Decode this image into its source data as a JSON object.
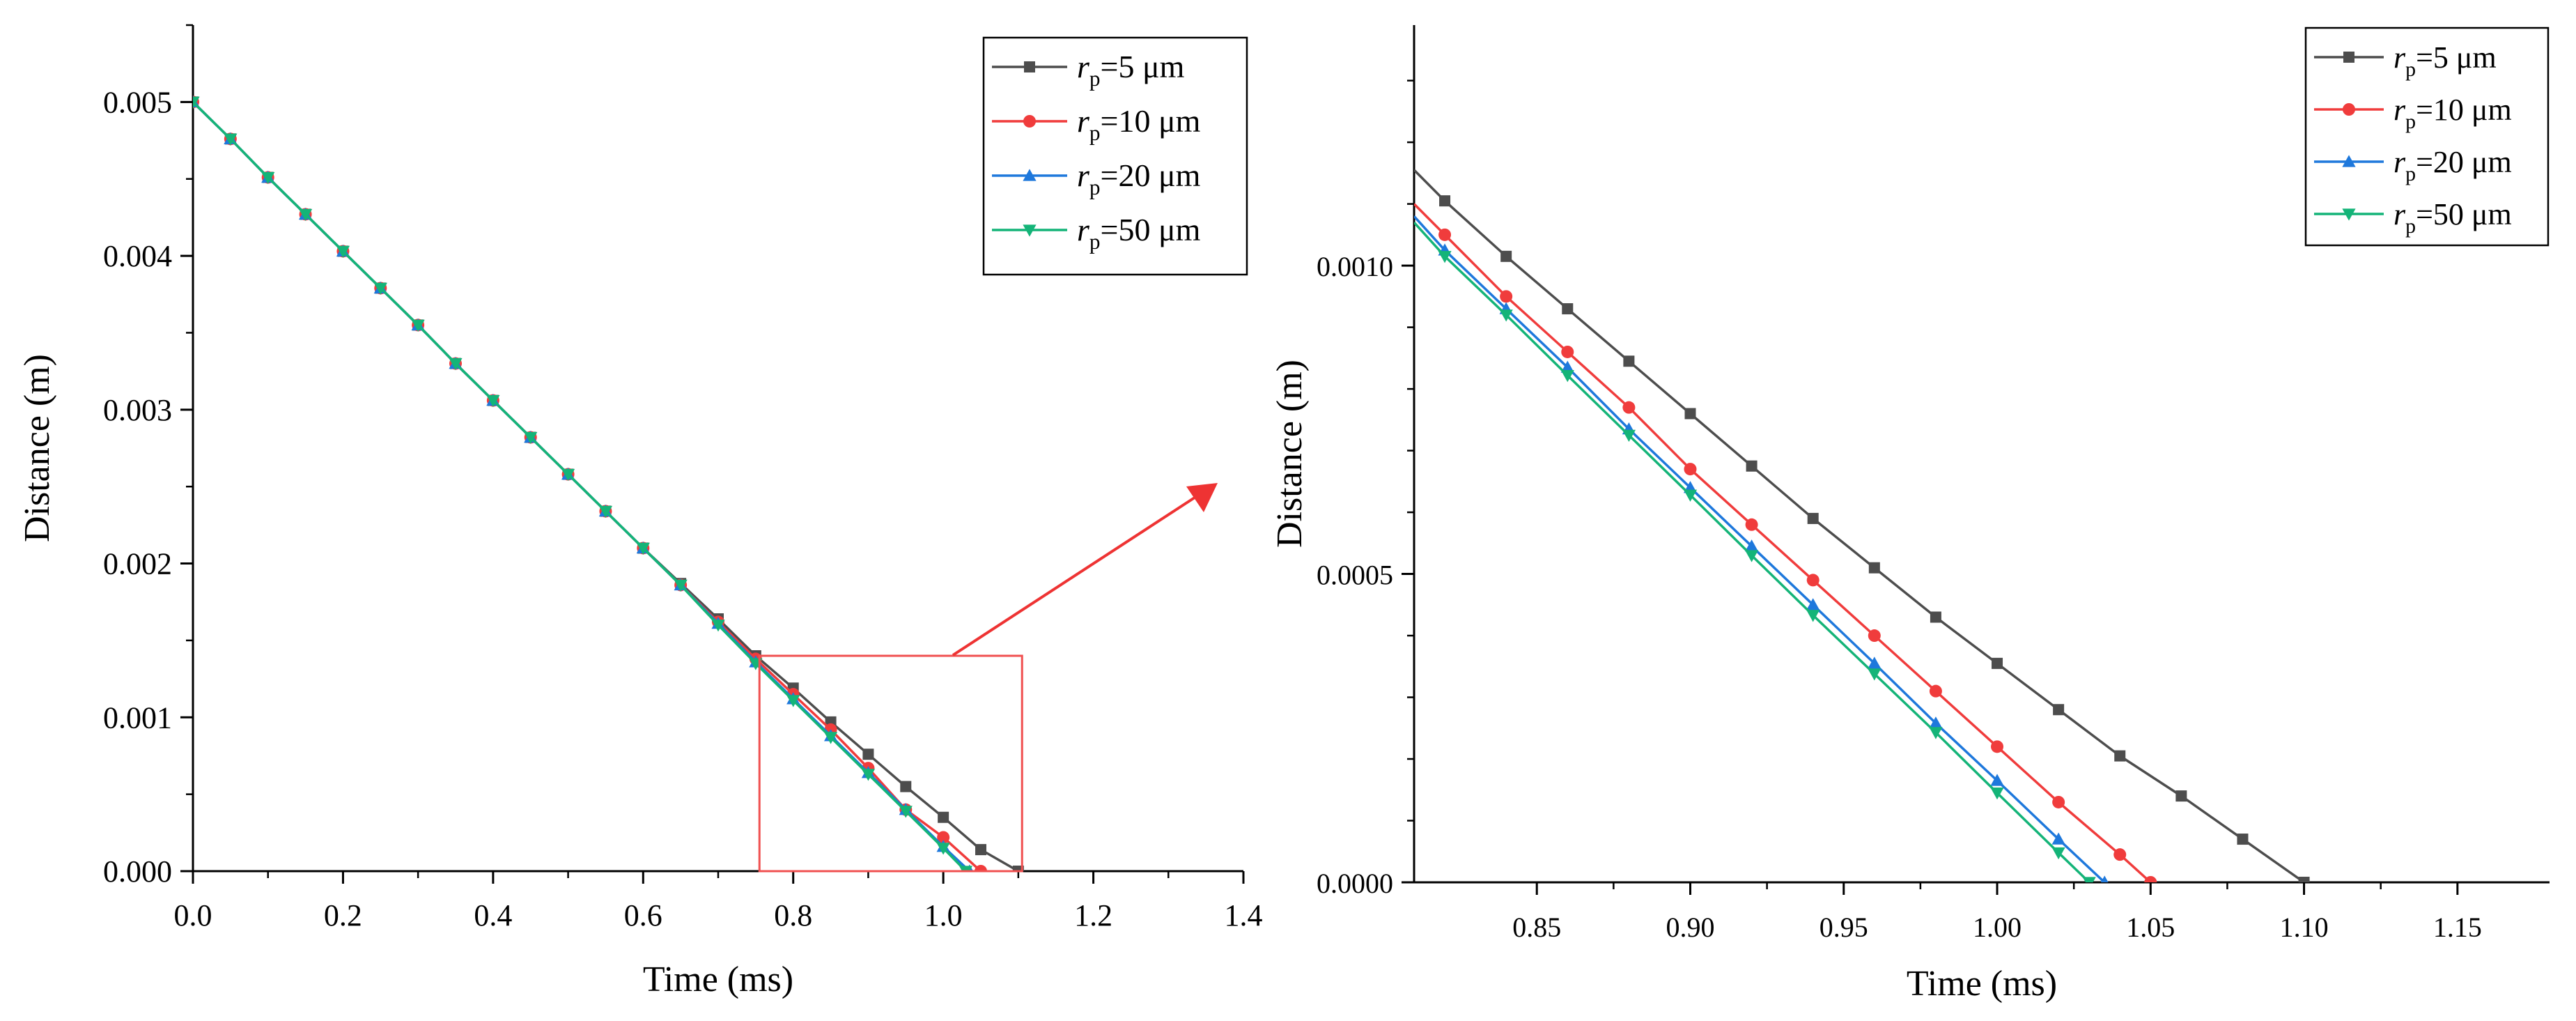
{
  "chart_data": [
    {
      "type": "line",
      "xlabel": "Time (ms)",
      "ylabel": "Distance (m)",
      "xlim": [
        0,
        1.4
      ],
      "ylim": [
        0,
        0.0055
      ],
      "x_ticks": [
        0,
        0.2,
        0.4,
        0.6,
        0.8,
        1.0,
        1.2,
        1.4
      ],
      "x_tick_labels": [
        "0.0",
        "0.2",
        "0.4",
        "0.6",
        "0.8",
        "1.0",
        "1.2",
        "1.4"
      ],
      "y_ticks": [
        0,
        0.001,
        0.002,
        0.003,
        0.004,
        0.005
      ],
      "y_tick_labels": [
        "0.000",
        "0.001",
        "0.002",
        "0.003",
        "0.004",
        "0.005"
      ],
      "legend_position": "top-right",
      "zoom_box": {
        "x_range": [
          0.755,
          1.105
        ],
        "y_range": [
          0,
          0.0014
        ]
      },
      "series": [
        {
          "name": "r",
          "subscript": "p",
          "suffix": "=5 μm",
          "color": "#4d4d4d",
          "marker": "square",
          "x": [
            0,
            0.05,
            0.1,
            0.15,
            0.2,
            0.25,
            0.3,
            0.35,
            0.4,
            0.45,
            0.5,
            0.55,
            0.6,
            0.65,
            0.7,
            0.75,
            0.8,
            0.85,
            0.9,
            0.95,
            1.0,
            1.05,
            1.1
          ],
          "y": [
            0.005,
            0.00476,
            0.00451,
            0.00427,
            0.00403,
            0.00379,
            0.00355,
            0.0033,
            0.00306,
            0.00282,
            0.00258,
            0.00234,
            0.0021,
            0.00187,
            0.00164,
            0.0014,
            0.00119,
            0.00097,
            0.00076,
            0.00055,
            0.00035,
            0.00014,
            0.0
          ]
        },
        {
          "name": "r",
          "subscript": "p",
          "suffix": "=10 μm",
          "color": "#f03c3c",
          "marker": "circle",
          "x": [
            0,
            0.05,
            0.1,
            0.15,
            0.2,
            0.25,
            0.3,
            0.35,
            0.4,
            0.45,
            0.5,
            0.55,
            0.6,
            0.65,
            0.7,
            0.75,
            0.8,
            0.85,
            0.9,
            0.95,
            1.0,
            1.05
          ],
          "y": [
            0.005,
            0.00476,
            0.00451,
            0.00427,
            0.00403,
            0.00379,
            0.00355,
            0.0033,
            0.00306,
            0.00282,
            0.00258,
            0.00234,
            0.0021,
            0.00186,
            0.00162,
            0.00138,
            0.00115,
            0.00092,
            0.00067,
            0.0004,
            0.00022,
            0.0
          ]
        },
        {
          "name": "r",
          "subscript": "p",
          "suffix": "=20 μm",
          "color": "#1e78dc",
          "marker": "triangle-up",
          "x": [
            0,
            0.05,
            0.1,
            0.15,
            0.2,
            0.25,
            0.3,
            0.35,
            0.4,
            0.45,
            0.5,
            0.55,
            0.6,
            0.65,
            0.7,
            0.75,
            0.8,
            0.85,
            0.9,
            0.95,
            1.0,
            1.035
          ],
          "y": [
            0.005,
            0.00476,
            0.00451,
            0.00427,
            0.00403,
            0.00379,
            0.00355,
            0.0033,
            0.00306,
            0.00282,
            0.00258,
            0.00234,
            0.0021,
            0.00186,
            0.00161,
            0.00136,
            0.00112,
            0.00088,
            0.00064,
            0.0004,
            0.00016,
            0.0
          ]
        },
        {
          "name": "r",
          "subscript": "p",
          "suffix": "=50 μm",
          "color": "#14b478",
          "marker": "triangle-down",
          "x": [
            0,
            0.05,
            0.1,
            0.15,
            0.2,
            0.25,
            0.3,
            0.35,
            0.4,
            0.45,
            0.5,
            0.55,
            0.6,
            0.65,
            0.7,
            0.75,
            0.8,
            0.85,
            0.9,
            0.95,
            1.0,
            1.03
          ],
          "y": [
            0.005,
            0.00476,
            0.00451,
            0.00427,
            0.00403,
            0.00379,
            0.00355,
            0.0033,
            0.00306,
            0.00282,
            0.00258,
            0.00234,
            0.0021,
            0.00186,
            0.0016,
            0.00135,
            0.00111,
            0.00087,
            0.00063,
            0.00039,
            0.00015,
            0.0
          ]
        }
      ]
    },
    {
      "type": "line",
      "xlabel": "Time (ms)",
      "ylabel": "Distance (m)",
      "xlim": [
        0.81,
        1.18
      ],
      "ylim": [
        0,
        0.00139
      ],
      "x_ticks": [
        0.85,
        0.9,
        0.95,
        1.0,
        1.05,
        1.1,
        1.15
      ],
      "x_tick_labels": [
        "0.85",
        "0.90",
        "0.95",
        "1.00",
        "1.05",
        "1.10",
        "1.15"
      ],
      "y_ticks": [
        0,
        0.0005,
        0.001
      ],
      "y_tick_labels": [
        "0.0000",
        "0.0005",
        "0.0010"
      ],
      "legend_position": "top-right",
      "series": [
        {
          "name": "r",
          "subscript": "p",
          "suffix": "=5 μm",
          "color": "#4d4d4d",
          "marker": "square",
          "x": [
            0.81,
            0.82,
            0.84,
            0.86,
            0.88,
            0.9,
            0.92,
            0.94,
            0.96,
            0.98,
            1.0,
            1.02,
            1.04,
            1.06,
            1.08,
            1.1
          ],
          "y": [
            0.001155,
            0.001105,
            0.001015,
            0.00093,
            0.000845,
            0.00076,
            0.000675,
            0.00059,
            0.00051,
            0.00043,
            0.000355,
            0.00028,
            0.000205,
            0.00014,
            7e-05,
            0.0
          ]
        },
        {
          "name": "r",
          "subscript": "p",
          "suffix": "=10 μm",
          "color": "#f03c3c",
          "marker": "circle",
          "x": [
            0.81,
            0.82,
            0.84,
            0.86,
            0.88,
            0.9,
            0.92,
            0.94,
            0.96,
            0.98,
            1.0,
            1.02,
            1.04,
            1.05
          ],
          "y": [
            0.0011,
            0.00105,
            0.00095,
            0.00086,
            0.00077,
            0.00067,
            0.00058,
            0.00049,
            0.0004,
            0.00031,
            0.00022,
            0.00013,
            4.5e-05,
            0.0
          ]
        },
        {
          "name": "r",
          "subscript": "p",
          "suffix": "=20 μm",
          "color": "#1e78dc",
          "marker": "triangle-up",
          "x": [
            0.81,
            0.82,
            0.84,
            0.86,
            0.88,
            0.9,
            0.92,
            0.94,
            0.96,
            0.98,
            1.0,
            1.02,
            1.035
          ],
          "y": [
            0.00108,
            0.001025,
            0.00093,
            0.000835,
            0.000735,
            0.00064,
            0.000545,
            0.00045,
            0.000355,
            0.000258,
            0.000165,
            7e-05,
            0.0
          ]
        },
        {
          "name": "r",
          "subscript": "p",
          "suffix": "=50 μm",
          "color": "#14b478",
          "marker": "triangle-down",
          "x": [
            0.81,
            0.82,
            0.84,
            0.86,
            0.88,
            0.9,
            0.92,
            0.94,
            0.96,
            0.98,
            1.0,
            1.02,
            1.03
          ],
          "y": [
            0.00107,
            0.001015,
            0.00092,
            0.000822,
            0.000725,
            0.000628,
            0.00053,
            0.000433,
            0.000338,
            0.000243,
            0.000145,
            4.8e-05,
            0.0
          ]
        }
      ]
    }
  ]
}
